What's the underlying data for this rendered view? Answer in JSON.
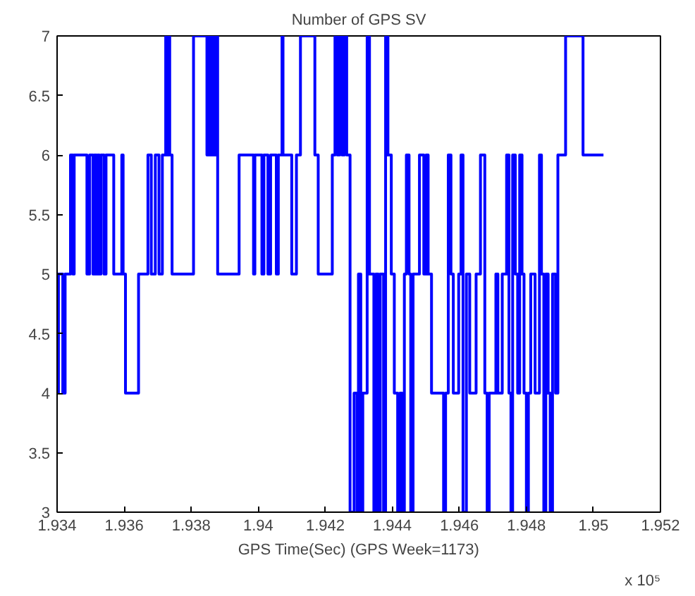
{
  "chart_data": {
    "type": "step",
    "title": "Number of GPS SV",
    "xlabel": "GPS Time(Sec) (GPS Week=1173)",
    "annotations": [
      "x 10⁵"
    ],
    "xlim": [
      1.934,
      1.952
    ],
    "xticks": [
      1.934,
      1.936,
      1.938,
      1.94,
      1.942,
      1.944,
      1.946,
      1.948,
      1.95,
      1.952
    ],
    "ylim": [
      3,
      7
    ],
    "yticks": [
      3,
      3.5,
      4,
      4.5,
      5,
      5.5,
      6,
      6.5,
      7
    ],
    "grid": false,
    "marker": "none",
    "line_style": "solid",
    "series": [
      {
        "color": "#0000ff",
        "x": [
          1.934,
          1.93404,
          1.93417,
          1.93424,
          1.9344,
          1.93447,
          1.93451,
          1.93489,
          1.93497,
          1.93507,
          1.93511,
          1.93517,
          1.93521,
          1.93526,
          1.93531,
          1.9354,
          1.93546,
          1.93569,
          1.93593,
          1.93597,
          1.93604,
          1.93643,
          1.93671,
          1.93681,
          1.93693,
          1.93704,
          1.93714,
          1.93724,
          1.9373,
          1.93733,
          1.93736,
          1.93743,
          1.93807,
          1.93847,
          1.93851,
          1.93857,
          1.93863,
          1.93869,
          1.93874,
          1.93879,
          1.93943,
          1.93986,
          1.9399,
          1.94011,
          1.94017,
          1.94029,
          1.94037,
          1.94054,
          1.9406,
          1.94071,
          1.94074,
          1.941,
          1.94114,
          1.94126,
          1.94169,
          1.94179,
          1.94221,
          1.94229,
          1.94236,
          1.94243,
          1.9425,
          1.94257,
          1.94264,
          1.94274,
          1.94286,
          1.94295,
          1.94299,
          1.94306,
          1.94312,
          1.94325,
          1.94332,
          1.94345,
          1.94351,
          1.94358,
          1.94364,
          1.94374,
          1.9438,
          1.94387,
          1.94397,
          1.94406,
          1.94416,
          1.94423,
          1.94429,
          1.94436,
          1.94442,
          1.9445,
          1.94455,
          1.94462,
          1.94481,
          1.94494,
          1.94501,
          1.94507,
          1.94517,
          1.94553,
          1.94559,
          1.94567,
          1.94575,
          1.94582,
          1.94598,
          1.94605,
          1.94611,
          1.94621,
          1.94631,
          1.9465,
          1.94663,
          1.94676,
          1.94683,
          1.94689,
          1.94709,
          1.94715,
          1.94728,
          1.94741,
          1.94748,
          1.94754,
          1.94759,
          1.94767,
          1.94774,
          1.9478,
          1.94787,
          1.94793,
          1.948,
          1.94806,
          1.94813,
          1.94826,
          1.94839,
          1.94845,
          1.94852,
          1.94858,
          1.94865,
          1.94871,
          1.94878,
          1.94887,
          1.94894,
          1.94917,
          1.94969,
          1.9503
        ],
        "values": [
          4,
          5,
          4,
          5,
          6,
          5,
          6,
          5,
          6,
          5,
          6,
          5,
          6,
          5,
          6,
          5,
          6,
          5,
          6,
          5,
          4,
          5,
          6,
          5,
          6,
          5,
          6,
          7,
          6,
          7,
          6,
          5,
          7,
          6,
          7,
          6,
          7,
          6,
          7,
          5,
          6,
          5,
          6,
          5,
          6,
          5,
          6,
          5,
          6,
          7,
          6,
          5,
          6,
          7,
          6,
          5,
          6,
          7,
          6,
          7,
          6,
          7,
          6,
          3,
          4,
          3,
          5,
          3,
          4,
          7,
          5,
          3,
          5,
          3,
          5,
          3,
          7,
          6,
          5,
          4,
          3,
          4,
          3,
          5,
          6,
          5,
          3,
          5,
          6,
          5,
          6,
          5,
          4,
          3,
          4,
          6,
          5,
          4,
          5,
          6,
          3,
          5,
          4,
          5,
          6,
          4,
          3,
          4,
          5,
          4,
          5,
          6,
          4,
          3,
          6,
          5,
          4,
          6,
          5,
          4,
          3,
          4,
          5,
          4,
          6,
          5,
          3,
          5,
          4,
          3,
          5,
          4,
          6,
          7,
          6,
          6
        ]
      }
    ]
  }
}
